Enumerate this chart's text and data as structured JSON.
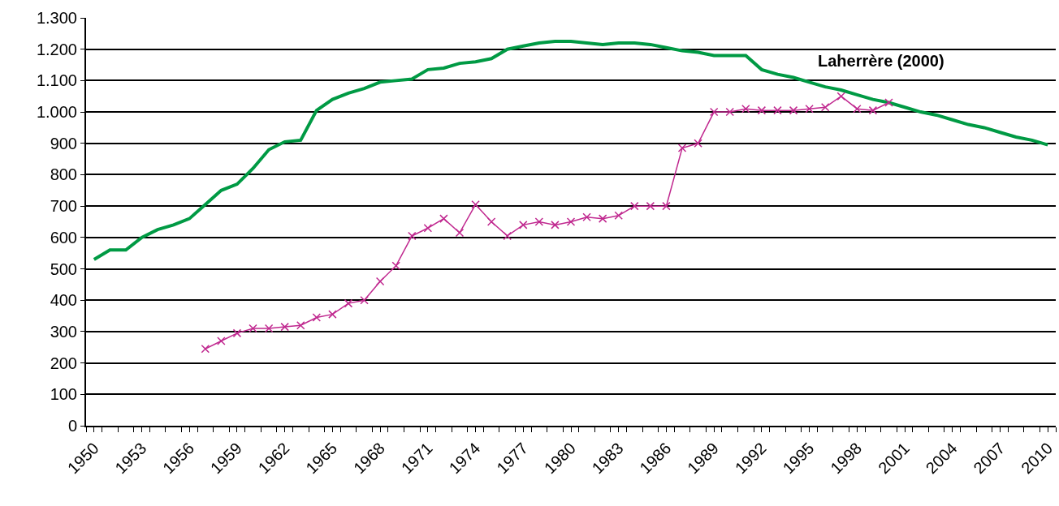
{
  "chart_data": {
    "type": "line",
    "xlim": [
      1949.5,
      2010.5
    ],
    "xticks": [
      1950,
      1953,
      1956,
      1959,
      1962,
      1965,
      1968,
      1971,
      1974,
      1977,
      1980,
      1983,
      1986,
      1989,
      1992,
      1995,
      1998,
      2001,
      2004,
      2007,
      2010
    ],
    "ylim": [
      0,
      1300
    ],
    "yticks": [
      0,
      100,
      200,
      300,
      400,
      500,
      600,
      700,
      800,
      900,
      {
        "value": 1000,
        "label": "1.000"
      },
      {
        "value": 1100,
        "label": "1.100"
      },
      {
        "value": 1200,
        "label": "1.200"
      },
      {
        "value": 1300,
        "label": "1.300"
      }
    ],
    "grid": "y",
    "legend": false,
    "series": [
      {
        "name": "Laherrère (2000)",
        "color": "#009a44",
        "marker": "none",
        "x": [
          1950,
          1951,
          1952,
          1953,
          1954,
          1955,
          1956,
          1957,
          1958,
          1959,
          1960,
          1961,
          1962,
          1963,
          1964,
          1965,
          1966,
          1967,
          1968,
          1969,
          1970,
          1971,
          1972,
          1973,
          1974,
          1975,
          1976,
          1977,
          1978,
          1979,
          1980,
          1981,
          1982,
          1983,
          1984,
          1985,
          1986,
          1987,
          1988,
          1989,
          1990,
          1991,
          1992,
          1993,
          1994,
          1995,
          1996,
          1997,
          1998,
          1999,
          2000,
          2001,
          2002,
          2003,
          2004,
          2005,
          2006,
          2007,
          2008,
          2009,
          2010
        ],
        "values": [
          530,
          560,
          560,
          600,
          625,
          640,
          660,
          705,
          750,
          770,
          820,
          880,
          905,
          910,
          1005,
          1040,
          1060,
          1075,
          1095,
          1100,
          1105,
          1135,
          1140,
          1155,
          1160,
          1170,
          1200,
          1210,
          1220,
          1225,
          1225,
          1220,
          1215,
          1220,
          1220,
          1215,
          1205,
          1195,
          1190,
          1180,
          1180,
          1180,
          1135,
          1120,
          1110,
          1095,
          1080,
          1070,
          1055,
          1040,
          1030,
          1015,
          1000,
          990,
          975,
          960,
          950,
          935,
          920,
          910,
          895
        ]
      },
      {
        "color": "#c0288f",
        "marker": "cross",
        "x": [
          1957,
          1958,
          1959,
          1960,
          1961,
          1962,
          1963,
          1964,
          1965,
          1966,
          1967,
          1968,
          1969,
          1970,
          1971,
          1972,
          1973,
          1974,
          1975,
          1976,
          1977,
          1978,
          1979,
          1980,
          1981,
          1982,
          1983,
          1984,
          1985,
          1986,
          1987,
          1988,
          1989,
          1990,
          1991,
          1992,
          1993,
          1994,
          1995,
          1996,
          1997,
          1998,
          1999,
          2000
        ],
        "values": [
          245,
          270,
          295,
          310,
          310,
          315,
          320,
          345,
          355,
          390,
          400,
          460,
          510,
          605,
          630,
          660,
          615,
          705,
          650,
          605,
          640,
          650,
          640,
          650,
          665,
          660,
          670,
          700,
          700,
          700,
          885,
          900,
          1000,
          1000,
          1010,
          1005,
          1005,
          1005,
          1010,
          1015,
          1050,
          1010,
          1005,
          1030
        ]
      }
    ]
  }
}
